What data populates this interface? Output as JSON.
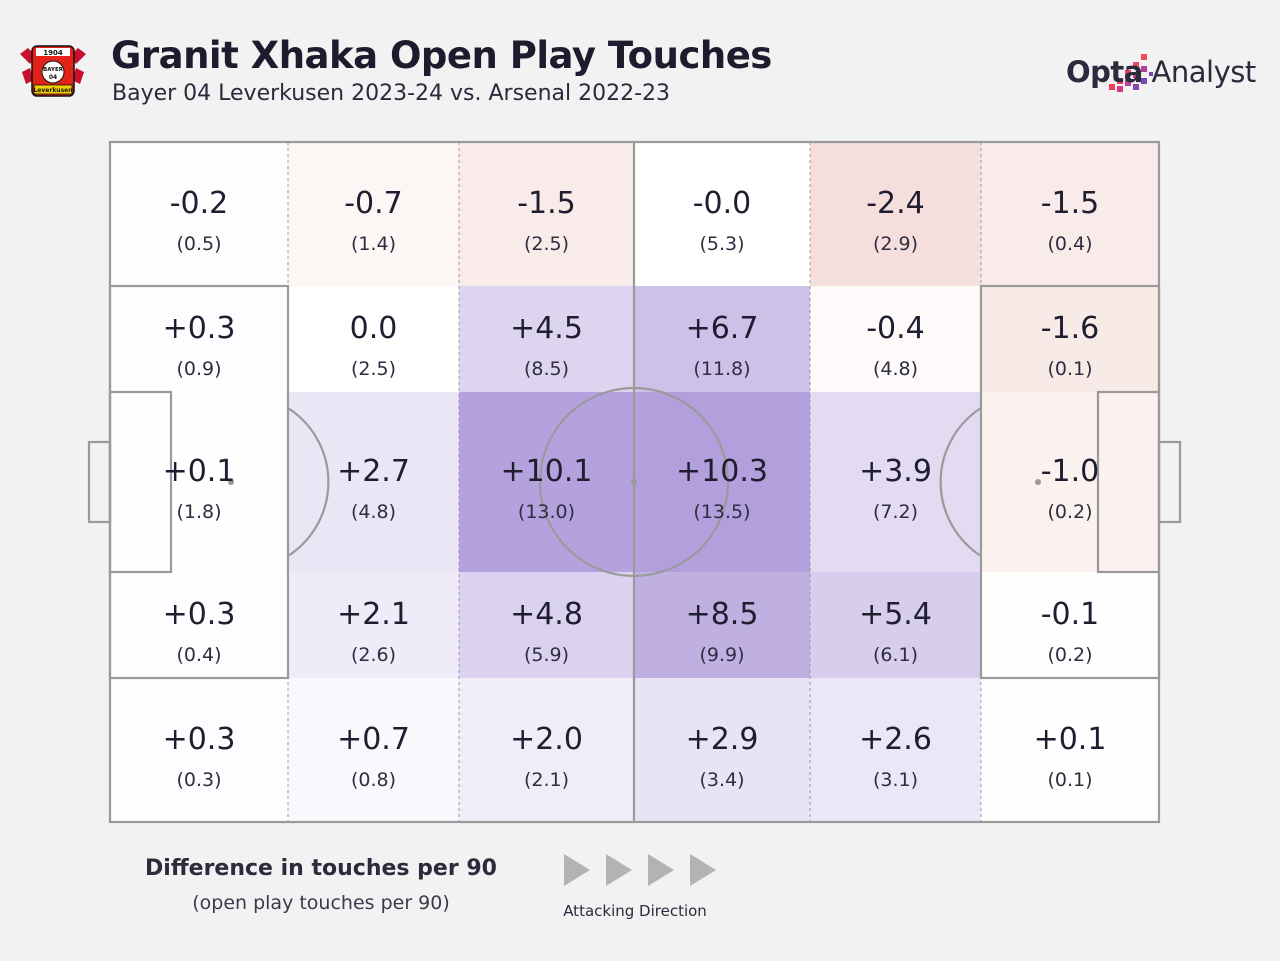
{
  "header": {
    "title": "Granit Xhaka Open Play Touches",
    "subtitle": "Bayer 04 Leverkusen 2023-24 vs. Arsenal 2022-23"
  },
  "crest": {
    "name": "Bayer 04 Leverkusen crest",
    "year": "1904",
    "word1": "BAYER",
    "word2": "04",
    "club": "Leverkusen"
  },
  "brand": {
    "name_bold": "Opta",
    "name_light": " Analyst"
  },
  "legend": {
    "title": "Difference in touches per 90",
    "subtitle": "(open play touches per 90)",
    "direction_label": "Attacking Direction"
  },
  "colors": {
    "background": "#f2f2f2",
    "positive": "#9b82d2",
    "negative": "#e8b6ae",
    "lines": "#9a9a9a"
  },
  "chart_data": {
    "type": "heatmap",
    "title": "Granit Xhaka Open Play Touches",
    "description_rows": "5 horizontal zones (top to bottom) x 6 vertical zones (own goal to opposition goal)",
    "value_label": "Difference in touches per 90",
    "sub_label": "open play touches per 90",
    "rows": [
      {
        "cells": [
          {
            "diff": "-0.2",
            "value": "(0.5)"
          },
          {
            "diff": "-0.7",
            "value": "(1.4)"
          },
          {
            "diff": "-1.5",
            "value": "(2.5)"
          },
          {
            "diff": "-0.0",
            "value": "(5.3)"
          },
          {
            "diff": "-2.4",
            "value": "(2.9)"
          },
          {
            "diff": "-1.5",
            "value": "(0.4)"
          }
        ]
      },
      {
        "cells": [
          {
            "diff": "+0.3",
            "value": "(0.9)"
          },
          {
            "diff": "0.0",
            "value": "(2.5)"
          },
          {
            "diff": "+4.5",
            "value": "(8.5)"
          },
          {
            "diff": "+6.7",
            "value": "(11.8)"
          },
          {
            "diff": "-0.4",
            "value": "(4.8)"
          },
          {
            "diff": "-1.6",
            "value": "(0.1)"
          }
        ]
      },
      {
        "cells": [
          {
            "diff": "+0.1",
            "value": "(1.8)"
          },
          {
            "diff": "+2.7",
            "value": "(4.8)"
          },
          {
            "diff": "+10.1",
            "value": "(13.0)"
          },
          {
            "diff": "+10.3",
            "value": "(13.5)"
          },
          {
            "diff": "+3.9",
            "value": "(7.2)"
          },
          {
            "diff": "-1.0",
            "value": "(0.2)"
          }
        ]
      },
      {
        "cells": [
          {
            "diff": "+0.3",
            "value": "(0.4)"
          },
          {
            "diff": "+2.1",
            "value": "(2.6)"
          },
          {
            "diff": "+4.8",
            "value": "(5.9)"
          },
          {
            "diff": "+8.5",
            "value": "(9.9)"
          },
          {
            "diff": "+5.4",
            "value": "(6.1)"
          },
          {
            "diff": "-0.1",
            "value": "(0.2)"
          }
        ]
      },
      {
        "cells": [
          {
            "diff": "+0.3",
            "value": "(0.3)"
          },
          {
            "diff": "+0.7",
            "value": "(0.8)"
          },
          {
            "diff": "+2.0",
            "value": "(2.1)"
          },
          {
            "diff": "+2.9",
            "value": "(3.4)"
          },
          {
            "diff": "+2.6",
            "value": "(3.1)"
          },
          {
            "diff": "+0.1",
            "value": "(0.1)"
          }
        ]
      }
    ]
  }
}
